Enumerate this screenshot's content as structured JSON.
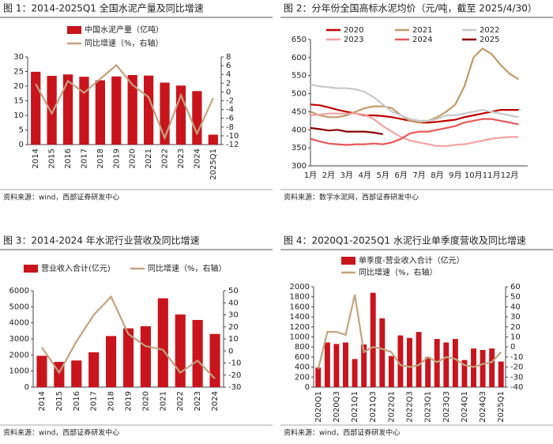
{
  "chart_data": [
    {
      "type": "combo",
      "title": "图 1：2014-2025Q1 全国水泥产量及同比增速",
      "source": "资料来源：wind，西部证券研发中心",
      "categories": [
        "2014",
        "2015",
        "2016",
        "2017",
        "2018",
        "2019",
        "2020",
        "2021",
        "2022",
        "2023",
        "2024",
        "2025Q1"
      ],
      "series": [
        {
          "name": "中国水泥产量（亿吨）",
          "type": "bar",
          "color": "#c8151d",
          "values": [
            24.9,
            23.5,
            24.0,
            23.2,
            22.0,
            23.3,
            23.8,
            23.6,
            21.2,
            20.2,
            18.3,
            3.4
          ]
        },
        {
          "name": "同比增速（%，右轴）",
          "type": "line",
          "axis": "y2",
          "color": "#c4a27f",
          "values": [
            1.8,
            -4.9,
            2.5,
            -0.2,
            3.0,
            6.1,
            1.6,
            -1.2,
            -10.5,
            -0.7,
            -9.5,
            -1.4
          ]
        }
      ],
      "ylim": [
        0,
        30
      ],
      "yticks": [
        0,
        5,
        10,
        15,
        20,
        25,
        30
      ],
      "y2lim": [
        -12,
        8
      ],
      "y2ticks": [
        -12,
        -10,
        -8,
        -6,
        -4,
        -2,
        0,
        2,
        4,
        6,
        8
      ]
    },
    {
      "type": "line",
      "title": "图 2：分年份全国高标水泥均价（元/吨，截至 2025/4/30）",
      "source": "资料来源：数字水泥网，西部证券研发中心",
      "categories": [
        "1月",
        null,
        "2月",
        null,
        "3月",
        null,
        "4月",
        null,
        "5月",
        null,
        "6月",
        null,
        "7月",
        null,
        "8月",
        null,
        "9月",
        null,
        "10月",
        null,
        "11月",
        null,
        "12月",
        null
      ],
      "series": [
        {
          "name": "2020",
          "color": "#c00000",
          "values": [
            470,
            468,
            462,
            455,
            450,
            445,
            440,
            440,
            438,
            435,
            430,
            425,
            420,
            420,
            422,
            425,
            428,
            435,
            440,
            445,
            450,
            455,
            455,
            455
          ]
        },
        {
          "name": "2021",
          "color": "#c19a6b",
          "values": [
            450,
            440,
            435,
            435,
            440,
            450,
            460,
            465,
            465,
            460,
            440,
            425,
            420,
            425,
            435,
            450,
            470,
            520,
            600,
            625,
            610,
            580,
            555,
            540
          ]
        },
        {
          "name": "2022",
          "color": "#c8c8c8",
          "values": [
            525,
            520,
            518,
            515,
            515,
            512,
            505,
            490,
            470,
            450,
            440,
            430,
            425,
            425,
            430,
            440,
            440,
            445,
            450,
            455,
            450,
            445,
            440,
            435
          ]
        },
        {
          "name": "2023",
          "color": "#f4a3a3",
          "values": [
            440,
            442,
            445,
            445,
            445,
            445,
            442,
            430,
            410,
            395,
            380,
            370,
            365,
            360,
            355,
            355,
            358,
            360,
            365,
            370,
            375,
            378,
            380,
            380
          ]
        },
        {
          "name": "2024",
          "color": "#e8585b",
          "values": [
            375,
            368,
            362,
            360,
            358,
            360,
            360,
            362,
            360,
            365,
            375,
            390,
            395,
            395,
            400,
            405,
            410,
            420,
            425,
            430,
            430,
            425,
            420,
            415
          ]
        },
        {
          "name": "2025",
          "color": "#8b0000",
          "values": [
            405,
            402,
            398,
            400,
            395,
            395,
            395,
            392,
            388,
            null,
            null,
            null,
            null,
            null,
            null,
            null,
            null,
            null,
            null,
            null,
            null,
            null,
            null,
            null
          ]
        }
      ],
      "ylim": [
        300,
        650
      ],
      "yticks": [
        300,
        350,
        400,
        450,
        500,
        550,
        600,
        650
      ]
    },
    {
      "type": "combo",
      "title": "图 3：2014-2024 年水泥行业营收及同比增速",
      "source": "资料来源：wind，西部证券研发中心",
      "categories": [
        "2014",
        "2015",
        "2016",
        "2017",
        "2018",
        "2019",
        "2020",
        "2021",
        "2022",
        "2023",
        "2024"
      ],
      "series": [
        {
          "name": "营业收入合计(亿元)",
          "type": "bar",
          "color": "#c8151d",
          "values": [
            1950,
            1570,
            1660,
            2170,
            3180,
            3660,
            3790,
            5530,
            4520,
            4180,
            3310
          ]
        },
        {
          "name": "同比增速（%，右轴）",
          "type": "line",
          "axis": "y2",
          "color": "#c4a27f",
          "values": [
            3,
            -18,
            8,
            30,
            45,
            14,
            4,
            1,
            -18,
            -8,
            -23
          ]
        }
      ],
      "ylim": [
        0,
        6000
      ],
      "yticks": [
        0,
        1000,
        2000,
        3000,
        4000,
        5000,
        6000
      ],
      "y2lim": [
        -30,
        50
      ],
      "y2ticks": [
        -30,
        -20,
        -10,
        0,
        10,
        20,
        30,
        40,
        50
      ]
    },
    {
      "type": "combo",
      "title": "图 4：2020Q1-2025Q1 水泥行业单季度营收及同比增速",
      "source": "资料来源：wind，西部证券研发中心",
      "categories": [
        "2020Q1",
        null,
        "2020Q3",
        null,
        "2021Q1",
        null,
        "2021Q3",
        null,
        "2022Q1",
        null,
        "2022Q3",
        null,
        "2023Q1",
        null,
        "2023Q3",
        null,
        "2024Q1",
        null,
        "2024Q3",
        null,
        "2025Q1"
      ],
      "series": [
        {
          "name": "单季度-营业收入合计（亿元）",
          "type": "bar",
          "color": "#c8151d",
          "values": [
            390,
            890,
            860,
            890,
            560,
            850,
            1880,
            1370,
            620,
            1030,
            980,
            1100,
            600,
            960,
            890,
            960,
            540,
            770,
            740,
            770,
            510
          ]
        },
        {
          "name": "同比增速（%，右轴）",
          "type": "line",
          "axis": "y2",
          "color": "#c4a27f",
          "values": [
            -22,
            15,
            15,
            12,
            52,
            -5,
            0,
            -2,
            -5,
            -18,
            -20,
            -18,
            -10,
            -15,
            -10,
            -12,
            -18,
            -20,
            -17,
            -15,
            -5
          ]
        }
      ],
      "ylim": [
        0,
        2000
      ],
      "yticks": [
        0,
        200,
        400,
        600,
        800,
        1000,
        1200,
        1400,
        1600,
        1800,
        2000
      ],
      "y2lim": [
        -40,
        60
      ],
      "y2ticks": [
        -40,
        -30,
        -20,
        -10,
        0,
        10,
        20,
        30,
        40,
        50,
        60
      ]
    }
  ]
}
